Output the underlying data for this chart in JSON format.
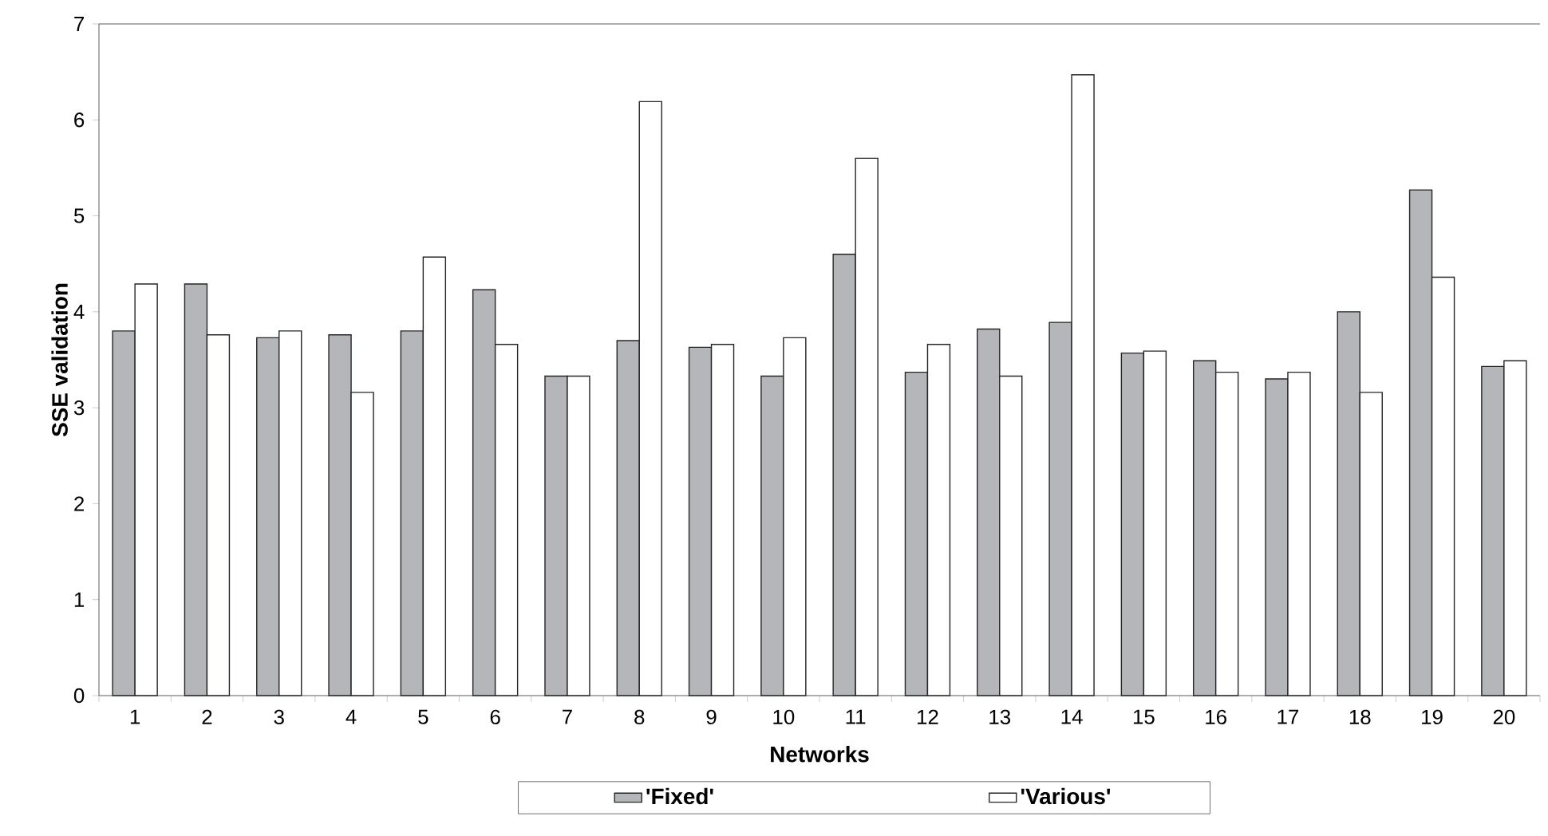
{
  "chart_data": {
    "type": "bar",
    "xlabel": "Networks",
    "ylabel": "SSE validation",
    "categories": [
      "1",
      "2",
      "3",
      "4",
      "5",
      "6",
      "7",
      "8",
      "9",
      "10",
      "11",
      "12",
      "13",
      "14",
      "15",
      "16",
      "17",
      "18",
      "19",
      "20"
    ],
    "series": [
      {
        "name": "'Fixed'",
        "color": "#b5b6ba",
        "values": [
          3.8,
          4.29,
          3.73,
          3.76,
          3.8,
          4.23,
          3.33,
          3.7,
          3.63,
          3.33,
          4.6,
          3.37,
          3.82,
          3.89,
          3.57,
          3.49,
          3.3,
          4.0,
          5.27,
          3.43
        ]
      },
      {
        "name": "'Various'",
        "color": "#ffffff",
        "values": [
          4.29,
          3.76,
          3.8,
          3.16,
          4.57,
          3.66,
          3.33,
          6.19,
          3.66,
          3.73,
          5.6,
          3.66,
          3.33,
          6.47,
          3.59,
          3.37,
          3.37,
          3.16,
          4.36,
          3.49
        ]
      }
    ],
    "ylim": [
      0,
      7
    ],
    "yticks": [
      0,
      1,
      2,
      3,
      4,
      5,
      6,
      7
    ],
    "legend": "bottom"
  }
}
